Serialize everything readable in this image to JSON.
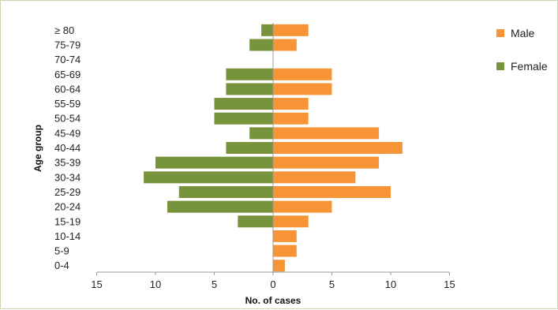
{
  "chart_data": {
    "type": "bar",
    "orientation": "horizontal",
    "categories": [
      "≥ 80",
      "75-79",
      "70-74",
      "65-69",
      "60-64",
      "55-59",
      "50-54",
      "45-49",
      "40-44",
      "35-39",
      "30-34",
      "25-29",
      "20-24",
      "15-19",
      "10-14",
      "5-9",
      "0-4"
    ],
    "series": [
      {
        "name": "Male",
        "color": "#f79435",
        "values": [
          3,
          2,
          0,
          5,
          5,
          3,
          3,
          9,
          11,
          9,
          7,
          10,
          5,
          3,
          2,
          2,
          1
        ]
      },
      {
        "name": "Female",
        "color": "#77933c",
        "values": [
          1,
          2,
          0,
          4,
          4,
          5,
          5,
          2,
          4,
          10,
          11,
          8,
          9,
          3,
          0,
          0,
          0
        ]
      }
    ],
    "xlabel": "No. of cases",
    "ylabel": "Age group",
    "xticks": [
      15,
      10,
      5,
      0,
      5,
      10,
      15
    ],
    "xlim": [
      -15,
      15
    ],
    "grid": false,
    "legend_position": "top-right"
  }
}
